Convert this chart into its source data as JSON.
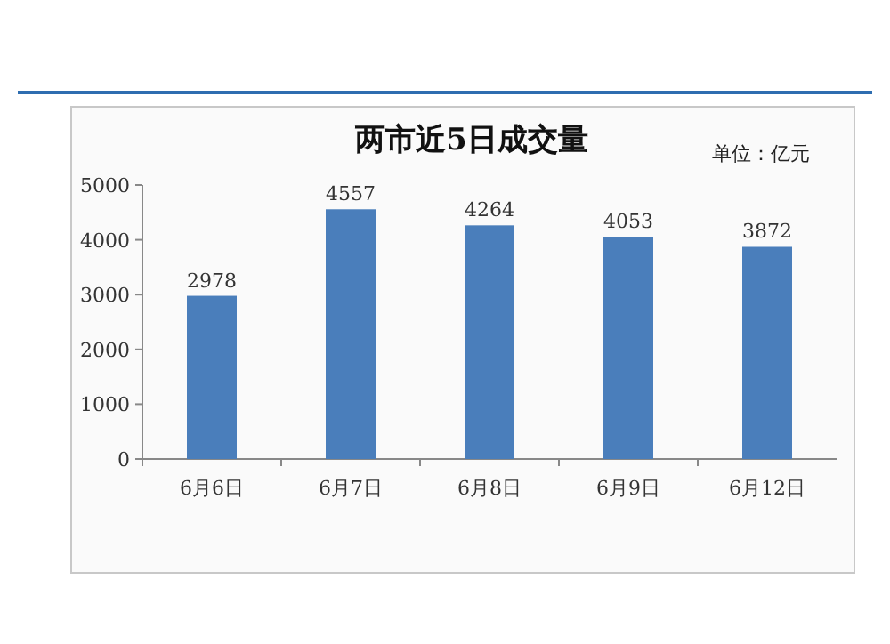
{
  "chart_data": {
    "type": "bar",
    "title": "两市近5日成交量",
    "annotations": [
      "单位：亿元"
    ],
    "categories": [
      "6月6日",
      "6月7日",
      "6月8日",
      "6月9日",
      "6月12日"
    ],
    "values": [
      2978,
      4557,
      4264,
      4053,
      3872
    ],
    "color": "#4a7ebb",
    "data_labels": true,
    "ylim": [
      0,
      5000
    ],
    "yticks": [
      0,
      1000,
      2000,
      3000,
      4000,
      5000
    ]
  }
}
